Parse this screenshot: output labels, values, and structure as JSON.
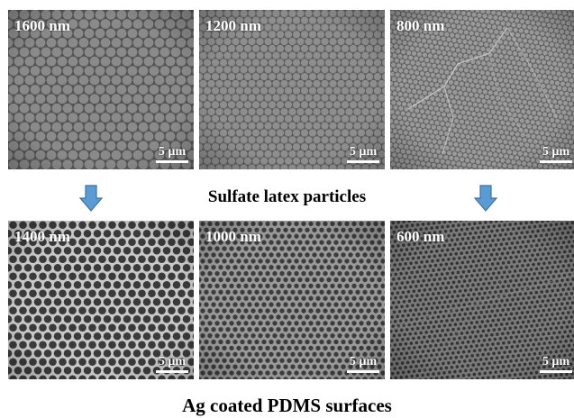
{
  "figure": {
    "top_row": [
      {
        "size_label": "1600 nm",
        "scale_label": "5 µm"
      },
      {
        "size_label": "1200 nm",
        "scale_label": "5 µm"
      },
      {
        "size_label": "800 nm",
        "scale_label": "5 µm"
      }
    ],
    "bottom_row": [
      {
        "size_label": "1400 nm",
        "scale_label": "5 µm"
      },
      {
        "size_label": "1000 nm",
        "scale_label": "5 µm"
      },
      {
        "size_label": "600 nm",
        "scale_label": "5 µm"
      }
    ],
    "middle_caption": "Sulfate latex particles",
    "bottom_caption": "Ag coated PDMS surfaces"
  },
  "colors": {
    "arrow_fill": "#5b9bd5",
    "arrow_stroke": "#41719c",
    "label_text": "#ffffff",
    "caption_text": "#000000"
  },
  "icons": {
    "arrows": [
      "arrow-down-icon",
      "arrow-down-icon"
    ]
  }
}
